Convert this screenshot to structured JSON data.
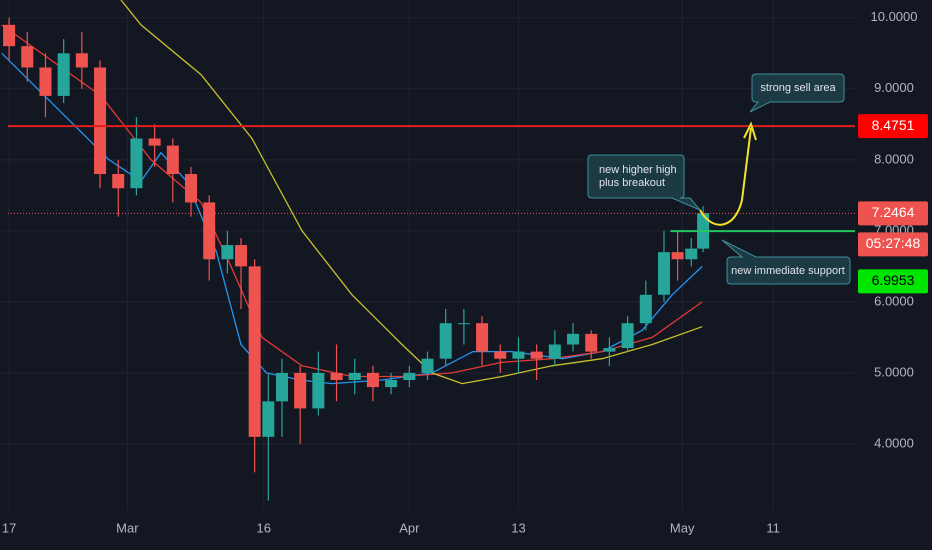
{
  "chart_data": {
    "type": "candlestick",
    "xlim": [
      -1,
      93
    ],
    "ylim": [
      3.07,
      10.25
    ],
    "xticks": [
      {
        "value": 0,
        "label": "17"
      },
      {
        "value": 13,
        "label": "Mar"
      },
      {
        "value": 28,
        "label": "16"
      },
      {
        "value": 44,
        "label": "Apr"
      },
      {
        "value": 56,
        "label": "13"
      },
      {
        "value": 74,
        "label": "May"
      },
      {
        "value": 84,
        "label": "11"
      }
    ],
    "yticks": [
      {
        "value": 4,
        "label": "4.0000"
      },
      {
        "value": 5,
        "label": "5.0000"
      },
      {
        "value": 6,
        "label": "6.0000"
      },
      {
        "value": 7,
        "label": "7.0000"
      },
      {
        "value": 8,
        "label": "8.0000"
      },
      {
        "value": 9,
        "label": "9.0000"
      },
      {
        "value": 10,
        "label": "10.0000"
      }
    ],
    "grid": true,
    "up_color": "#26a69a",
    "down_color": "#ef5350",
    "candles": {
      "x": [
        0,
        2,
        4,
        6,
        8,
        10,
        12,
        14,
        16,
        18,
        20,
        22,
        24,
        25.5,
        27,
        28.5,
        30,
        32,
        34,
        36,
        38,
        40,
        42,
        44,
        46,
        48,
        50,
        52,
        54,
        56,
        58,
        60,
        62,
        64,
        66,
        68,
        70,
        72,
        73.5,
        75,
        76.3
      ],
      "open": [
        9.9,
        9.6,
        9.3,
        8.9,
        9.5,
        9.3,
        7.8,
        7.6,
        8.3,
        8.2,
        7.8,
        7.4,
        6.6,
        6.8,
        6.5,
        4.1,
        4.6,
        5.0,
        4.5,
        5.0,
        4.9,
        5.0,
        4.8,
        4.9,
        5.0,
        5.2,
        5.7,
        5.7,
        5.3,
        5.2,
        5.3,
        5.2,
        5.4,
        5.55,
        5.3,
        5.35,
        5.7,
        6.1,
        6.7,
        6.6,
        6.75
      ],
      "high": [
        10.0,
        9.8,
        9.5,
        9.7,
        9.8,
        9.4,
        8.0,
        8.6,
        8.5,
        8.3,
        7.9,
        7.5,
        7.0,
        6.9,
        6.6,
        5.0,
        5.2,
        5.1,
        5.3,
        5.4,
        5.2,
        5.1,
        5.0,
        5.1,
        5.3,
        5.9,
        5.9,
        5.8,
        5.4,
        5.5,
        5.4,
        5.6,
        5.7,
        5.6,
        5.5,
        5.8,
        6.3,
        7.0,
        7.0,
        6.9,
        7.35
      ],
      "low": [
        9.4,
        9.1,
        8.6,
        8.8,
        9.0,
        7.6,
        7.2,
        7.5,
        7.9,
        7.4,
        7.2,
        6.3,
        6.4,
        5.9,
        3.6,
        3.2,
        4.1,
        4.0,
        4.4,
        4.6,
        4.7,
        4.6,
        4.7,
        4.8,
        4.9,
        5.1,
        5.4,
        5.1,
        5.0,
        5.0,
        4.9,
        5.1,
        5.3,
        5.2,
        5.1,
        5.3,
        5.6,
        6.0,
        6.3,
        6.5,
        6.7
      ],
      "close": [
        9.6,
        9.3,
        8.9,
        9.5,
        9.3,
        7.8,
        7.6,
        8.3,
        8.2,
        7.8,
        7.4,
        6.6,
        6.8,
        6.5,
        4.1,
        4.6,
        5.0,
        4.5,
        5.0,
        4.9,
        5.0,
        4.8,
        4.9,
        5.0,
        5.2,
        5.7,
        5.7,
        5.3,
        5.2,
        5.3,
        5.2,
        5.4,
        5.55,
        5.3,
        5.35,
        5.7,
        6.1,
        6.7,
        6.6,
        6.75,
        7.25
      ]
    },
    "moving_averages": [
      {
        "color": "#2196f3",
        "x": [
          -0.8,
          11,
          14.5,
          16.7,
          19.5,
          22.8,
          25.5,
          28.3,
          32,
          35.5,
          41,
          46.5,
          51,
          55.3,
          60.8,
          65.2,
          69.6,
          72.9,
          76.2
        ],
        "values": [
          9.5,
          8.0,
          7.7,
          8.1,
          7.7,
          6.7,
          5.4,
          5.0,
          4.9,
          4.85,
          4.9,
          5.0,
          5.3,
          5.3,
          5.2,
          5.3,
          5.6,
          6.1,
          6.5
        ]
      },
      {
        "color": "#e53935",
        "x": [
          -0.8,
          10.1,
          15.6,
          21.1,
          24.4,
          27.8,
          32.2,
          37.7,
          43.2,
          48.7,
          54.2,
          59.7,
          65.2,
          70.7,
          76.2
        ],
        "values": [
          9.9,
          8.9,
          8.0,
          7.4,
          6.5,
          5.5,
          5.1,
          4.95,
          4.95,
          5.0,
          5.15,
          5.2,
          5.3,
          5.5,
          6.0
        ]
      },
      {
        "color": "#c9c12a",
        "x": [
          12.3,
          14.5,
          21.1,
          26.7,
          32.2,
          37.7,
          43.2,
          46.5,
          49.8,
          54.2,
          59.7,
          65.2,
          70.7,
          76.2
        ],
        "values": [
          10.25,
          9.9,
          9.2,
          8.3,
          7.0,
          6.1,
          5.4,
          5.0,
          4.85,
          4.95,
          5.1,
          5.2,
          5.4,
          5.65
        ]
      }
    ],
    "levels": [
      {
        "value": 8.4751,
        "color": "#e01e1e",
        "style": "solid",
        "label_color": "#ff0000",
        "text_color": "#ffffff"
      },
      {
        "value": 7.2464,
        "color": "#ef5350",
        "style": "dotted",
        "label_color": "#ef5350",
        "text_color": "#ffffff"
      },
      {
        "value": 6.9953,
        "color": "#22c55e",
        "style": "solid",
        "x_start": 72.7,
        "label_color": "#00e600",
        "text_color": "#000000"
      }
    ],
    "countdown": "05:27:48",
    "annotations": {
      "sell": "strong sell area",
      "breakout": [
        "new higher high",
        "plus breakout"
      ],
      "support": "new immediate support"
    }
  }
}
